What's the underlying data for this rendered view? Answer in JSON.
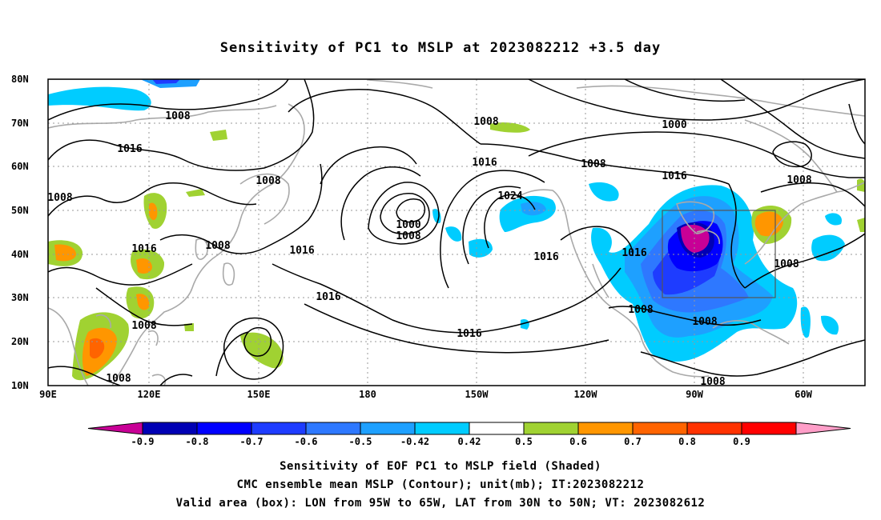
{
  "title": "Sensitivity of PC1 to MSLP at 2023082212 +3.5 day",
  "lat_labels": [
    "80N",
    "70N",
    "60N",
    "50N",
    "40N",
    "30N",
    "20N",
    "10N"
  ],
  "lon_labels": [
    "90E",
    "120E",
    "150E",
    "180",
    "150W",
    "120W",
    "90W",
    "60W"
  ],
  "contour_labels": [
    "1008",
    "1016",
    "1008",
    "1008",
    "1016",
    "1008",
    "1008",
    "1016",
    "1016",
    "1008",
    "1008",
    "1024",
    "1000",
    "1008",
    "1016",
    "1016",
    "1016",
    "1008",
    "1016",
    "1000",
    "1008",
    "1016",
    "1008",
    "1008",
    "1008",
    "1008"
  ],
  "colorbar": {
    "labels": [
      "-0.9",
      "-0.8",
      "-0.7",
      "-0.6",
      "-0.5",
      "-0.42",
      "0.42",
      "0.5",
      "0.6",
      "0.7",
      "0.8",
      "0.9"
    ],
    "colors": [
      "#0000b4",
      "#0000ff",
      "#1e3cff",
      "#2e78ff",
      "#1ea0ff",
      "#00ccff",
      "#ffffff",
      "#a0d232",
      "#ff9600",
      "#ff6400",
      "#ff3200",
      "#ff0000"
    ],
    "low_end": "#c80096",
    "high_end": "#ff9ec8"
  },
  "box": {
    "lon_west": -95,
    "lon_east": -65,
    "lat_south": 30,
    "lat_north": 50
  },
  "captions": [
    "Sensitivity of EOF PC1 to MSLP field (Shaded)",
    "CMC ensemble mean MSLP (Contour); unit(mb); IT:2023082212",
    "Valid area (box): LON from 95W to 65W, LAT from 30N to 50N; VT: 2023082612"
  ]
}
